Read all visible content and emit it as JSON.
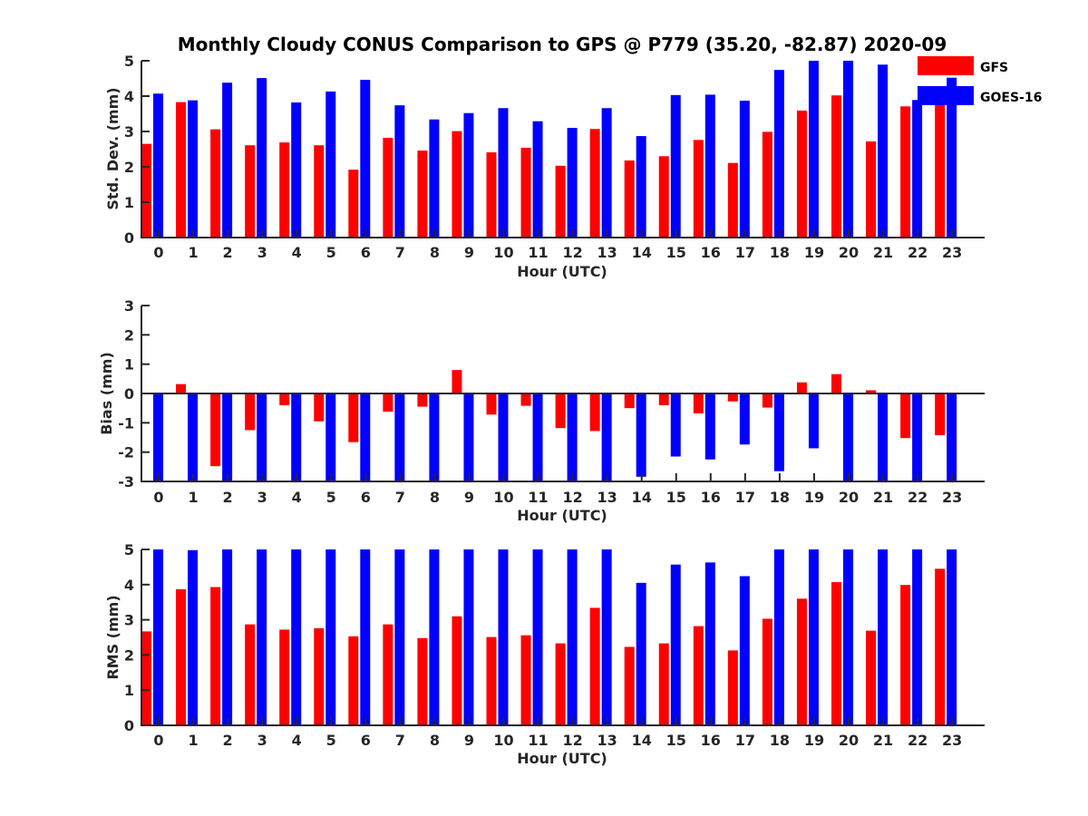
{
  "title": "Monthly Cloudy CONUS Comparison to GPS @ P779 (35.20, -82.87) 2020-09",
  "legend": [
    {
      "name": "GFS",
      "color": "#ff0000"
    },
    {
      "name": "GOES-16",
      "color": "#0000ff"
    }
  ],
  "chart_data": [
    {
      "type": "bar",
      "xlabel": "Hour (UTC)",
      "ylabel": "Std. Dev. (mm)",
      "ylim": [
        0,
        5
      ],
      "yticks": [
        0,
        1,
        2,
        3,
        4,
        5
      ],
      "categories": [
        "0",
        "1",
        "2",
        "3",
        "4",
        "5",
        "6",
        "7",
        "8",
        "9",
        "10",
        "11",
        "12",
        "13",
        "14",
        "15",
        "16",
        "17",
        "18",
        "19",
        "20",
        "21",
        "22",
        "23"
      ],
      "series": [
        {
          "name": "GFS",
          "values": [
            2.65,
            3.83,
            3.06,
            2.61,
            2.69,
            2.61,
            1.92,
            2.82,
            2.46,
            3.01,
            2.41,
            2.54,
            2.03,
            3.07,
            2.18,
            2.3,
            2.76,
            2.11,
            2.99,
            3.59,
            4.02,
            2.72,
            3.71,
            3.8
          ]
        },
        {
          "name": "GOES-16",
          "values": [
            4.07,
            3.88,
            4.38,
            4.51,
            3.82,
            4.13,
            4.46,
            3.74,
            3.34,
            3.52,
            3.66,
            3.29,
            3.1,
            3.66,
            2.87,
            4.03,
            4.04,
            3.87,
            4.74,
            5.0,
            5.0,
            4.89,
            3.89,
            4.52
          ]
        }
      ]
    },
    {
      "type": "bar",
      "xlabel": "Hour (UTC)",
      "ylabel": "Bias (mm)",
      "ylim": [
        -3,
        3
      ],
      "yticks": [
        -3,
        -2,
        -1,
        0,
        1,
        2,
        3
      ],
      "zero_line": true,
      "categories": [
        "0",
        "1",
        "2",
        "3",
        "4",
        "5",
        "6",
        "7",
        "8",
        "9",
        "10",
        "11",
        "12",
        "13",
        "14",
        "15",
        "16",
        "17",
        "18",
        "19",
        "20",
        "21",
        "22",
        "23"
      ],
      "series": [
        {
          "name": "GFS",
          "values": [
            0.0,
            0.32,
            -2.48,
            -1.25,
            -0.4,
            -0.95,
            -1.66,
            -0.62,
            -0.45,
            0.8,
            -0.72,
            -0.42,
            -1.18,
            -1.28,
            -0.5,
            -0.4,
            -0.68,
            -0.27,
            -0.48,
            0.38,
            0.66,
            0.11,
            -1.52,
            -1.42
          ]
        },
        {
          "name": "GOES-16",
          "values": [
            -3.0,
            -3.0,
            -3.0,
            -3.0,
            -3.0,
            -3.0,
            -3.0,
            -3.0,
            -3.0,
            -3.0,
            -3.0,
            -3.0,
            -3.0,
            -3.0,
            -2.84,
            -2.15,
            -2.25,
            -1.74,
            -2.65,
            -1.87,
            -3.0,
            -3.0,
            -3.0,
            -3.0
          ]
        }
      ]
    },
    {
      "type": "bar",
      "xlabel": "Hour (UTC)",
      "ylabel": "RMS (mm)",
      "ylim": [
        0,
        5
      ],
      "yticks": [
        0,
        1,
        2,
        3,
        4,
        5
      ],
      "categories": [
        "0",
        "1",
        "2",
        "3",
        "4",
        "5",
        "6",
        "7",
        "8",
        "9",
        "10",
        "11",
        "12",
        "13",
        "14",
        "15",
        "16",
        "17",
        "18",
        "19",
        "20",
        "21",
        "22",
        "23"
      ],
      "series": [
        {
          "name": "GFS",
          "values": [
            2.67,
            3.87,
            3.93,
            2.87,
            2.72,
            2.76,
            2.53,
            2.87,
            2.48,
            3.1,
            2.51,
            2.56,
            2.33,
            3.34,
            2.23,
            2.33,
            2.82,
            2.13,
            3.03,
            3.6,
            4.07,
            2.69,
            3.99,
            4.45
          ]
        },
        {
          "name": "GOES-16",
          "values": [
            5.0,
            4.98,
            5.0,
            5.0,
            5.0,
            5.0,
            5.0,
            5.0,
            5.0,
            5.0,
            5.0,
            5.0,
            5.0,
            5.0,
            4.05,
            4.57,
            4.63,
            4.24,
            5.0,
            5.0,
            5.0,
            5.0,
            5.0,
            5.0
          ]
        }
      ]
    }
  ]
}
